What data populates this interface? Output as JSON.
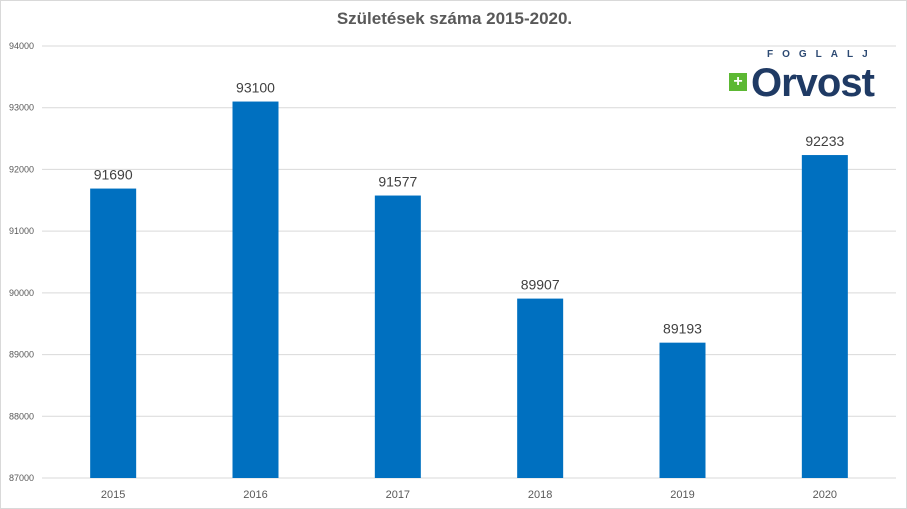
{
  "chart_data": {
    "type": "bar",
    "title": "Születések száma 2015-2020.",
    "categories": [
      "2015",
      "2016",
      "2017",
      "2018",
      "2019",
      "2020"
    ],
    "values": [
      91690,
      93100,
      91577,
      89907,
      89193,
      92233
    ],
    "ylim": [
      87000,
      94000
    ],
    "yticks": [
      87000,
      88000,
      89000,
      90000,
      91000,
      92000,
      93000,
      94000
    ],
    "xlabel": "",
    "ylabel": "",
    "grid": true,
    "bar_color": "#0070c0"
  },
  "logo": {
    "small": "FOGLALJ",
    "big": "Orvost",
    "plus": "+"
  }
}
